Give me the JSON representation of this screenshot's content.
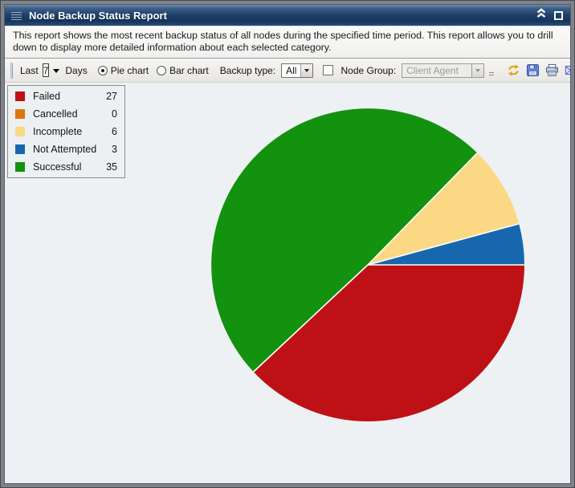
{
  "window": {
    "title": "Node Backup Status Report",
    "titlebar_icons": [
      "grip-icon",
      "collapse-icon",
      "maximize-icon"
    ]
  },
  "description": "This report shows the most recent backup status of all nodes during the specified time period. This report allows you to drill down to display more detailed information about each selected category.",
  "toolbar": {
    "last_label": "Last",
    "last_value": "7",
    "days_label": "Days",
    "chart_type_options": [
      {
        "label": "Pie chart",
        "selected": true
      },
      {
        "label": "Bar chart",
        "selected": false
      }
    ],
    "backup_type_label": "Backup type:",
    "backup_type_value": "All",
    "node_group_checked": false,
    "node_group_label": "Node Group:",
    "node_group_value": "Client Agent",
    "node_group_enabled": false,
    "action_icons": [
      "refresh-icon",
      "save-icon",
      "print-icon",
      "email-icon"
    ]
  },
  "chart_data": {
    "type": "pie",
    "title": "Node Backup Status Report",
    "categories": [
      "Failed",
      "Cancelled",
      "Incomplete",
      "Not Attempted",
      "Successful"
    ],
    "values": [
      27,
      0,
      6,
      3,
      35
    ],
    "colors": [
      "#be1115",
      "#dd760f",
      "#fbd884",
      "#1767ae",
      "#12920f"
    ],
    "total": 71,
    "legend_position": "top-left",
    "legend_shows_values": true,
    "start_angle_deg": 0,
    "direction": "clockwise",
    "draw_order": [
      "Failed",
      "Successful",
      "Incomplete",
      "Not Attempted",
      "Cancelled"
    ],
    "slice_separator_color": "#ffffff",
    "radius_px": 195
  }
}
